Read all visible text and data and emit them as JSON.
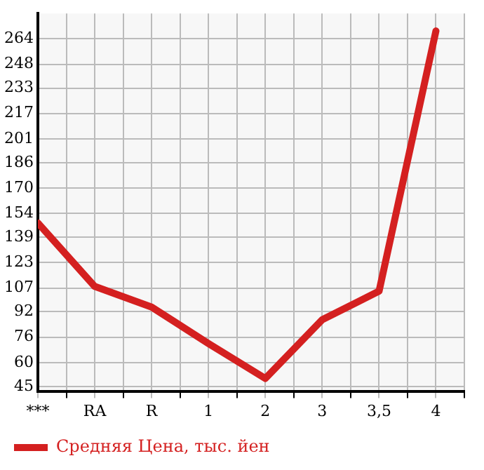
{
  "chart_data": {
    "type": "line",
    "categories": [
      "***",
      "RA",
      "R",
      "1",
      "2",
      "3",
      "3,5",
      "4"
    ],
    "series": [
      {
        "name": "Средняя Цена, тыс. йен",
        "color": "#d42020",
        "values": [
          148,
          108,
          95,
          72,
          50,
          87,
          105,
          269
        ]
      }
    ],
    "ylim": [
      42,
      280
    ],
    "yticks": [
      45,
      60,
      76,
      92,
      107,
      123,
      139,
      154,
      170,
      186,
      201,
      217,
      233,
      248,
      264
    ],
    "grid": true,
    "legend": "bottom left",
    "marker": "none",
    "line_style": "solid"
  }
}
